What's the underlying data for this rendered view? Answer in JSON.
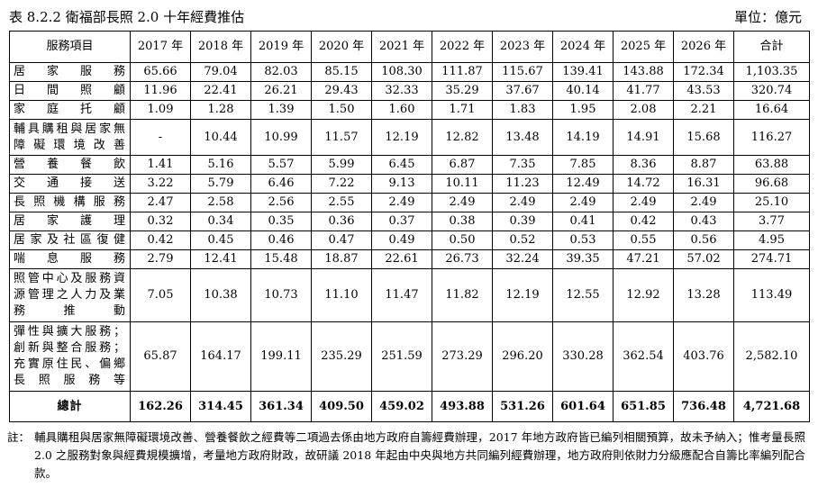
{
  "caption": {
    "title": "表 8.2.2   衛福部長照 2.0 十年經費推估",
    "unit": "單位：億元"
  },
  "table": {
    "headers": [
      "服務項目",
      "2017 年",
      "2018 年",
      "2019 年",
      "2020 年",
      "2021 年",
      "2022 年",
      "2023 年",
      "2024 年",
      "2025 年",
      "2026 年",
      "合計"
    ],
    "rows": [
      {
        "item": "居家服務",
        "values": [
          "65.66",
          "79.04",
          "82.03",
          "85.15",
          "108.30",
          "111.87",
          "115.67",
          "139.41",
          "143.88",
          "172.34",
          "1,103.35"
        ]
      },
      {
        "item": "日間照顧",
        "values": [
          "11.96",
          "22.41",
          "26.21",
          "29.43",
          "32.33",
          "35.29",
          "37.67",
          "40.14",
          "41.77",
          "43.53",
          "320.74"
        ]
      },
      {
        "item": "家庭托顧",
        "values": [
          "1.09",
          "1.28",
          "1.39",
          "1.50",
          "1.60",
          "1.71",
          "1.83",
          "1.95",
          "2.08",
          "2.21",
          "16.64"
        ]
      },
      {
        "item": "輔具購租與居家無障礙環境改善",
        "values": [
          "-",
          "10.44",
          "10.99",
          "11.57",
          "12.19",
          "12.82",
          "13.48",
          "14.19",
          "14.91",
          "15.68",
          "116.27"
        ]
      },
      {
        "item": "營養餐飲",
        "values": [
          "1.41",
          "5.16",
          "5.57",
          "5.99",
          "6.45",
          "6.87",
          "7.35",
          "7.85",
          "8.36",
          "8.87",
          "63.88"
        ]
      },
      {
        "item": "交通接送",
        "values": [
          "3.22",
          "5.79",
          "6.46",
          "7.22",
          "9.13",
          "10.11",
          "11.23",
          "12.49",
          "14.72",
          "16.31",
          "96.68"
        ]
      },
      {
        "item": "長照機構服務",
        "values": [
          "2.47",
          "2.58",
          "2.56",
          "2.55",
          "2.49",
          "2.49",
          "2.49",
          "2.49",
          "2.49",
          "2.49",
          "25.10"
        ]
      },
      {
        "item": "居家護理",
        "values": [
          "0.32",
          "0.34",
          "0.35",
          "0.36",
          "0.37",
          "0.38",
          "0.39",
          "0.41",
          "0.42",
          "0.43",
          "3.77"
        ]
      },
      {
        "item": "居家及社區復健",
        "values": [
          "0.42",
          "0.45",
          "0.46",
          "0.47",
          "0.49",
          "0.50",
          "0.52",
          "0.53",
          "0.55",
          "0.56",
          "4.95"
        ]
      },
      {
        "item": "喘息服務",
        "values": [
          "2.79",
          "12.41",
          "15.48",
          "18.87",
          "22.61",
          "26.73",
          "32.24",
          "39.35",
          "47.21",
          "57.02",
          "274.71"
        ]
      },
      {
        "item": "照管中心及服務資源管理之人力及業務推動",
        "values": [
          "7.05",
          "10.38",
          "10.73",
          "11.10",
          "11.47",
          "11.82",
          "12.19",
          "12.55",
          "12.92",
          "13.28",
          "113.49"
        ]
      },
      {
        "item": "彈性與擴大服務；創新與整合服務；充實原住民、偏鄉長照服務等",
        "values": [
          "65.87",
          "164.17",
          "199.11",
          "235.29",
          "251.59",
          "273.29",
          "296.20",
          "330.28",
          "362.54",
          "403.76",
          "2,582.10"
        ]
      }
    ],
    "total": {
      "item": "總計",
      "values": [
        "162.26",
        "314.45",
        "361.34",
        "409.50",
        "459.02",
        "493.88",
        "531.26",
        "601.64",
        "651.85",
        "736.48",
        "4,721.68"
      ]
    }
  },
  "note": {
    "label": "註：",
    "text": "輔具購租與居家無障礙環境改善、營養餐飲之經費等二項過去係由地方政府自籌經費辦理，2017 年地方政府皆已編列相關預算，故未予納入；惟考量長照 2.0 之服務對象與經費規模擴增，考量地方政府財政，故研議 2018 年起由中央與地方共同編列經費辦理，地方政府則依財力分級應配合自籌比率編列配合款。"
  }
}
